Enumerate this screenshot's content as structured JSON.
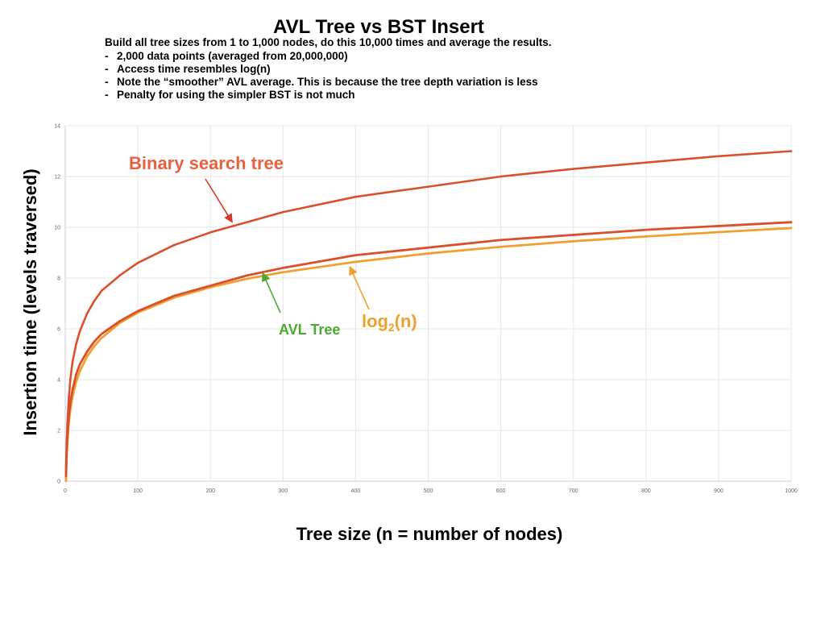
{
  "slide": {
    "title": "AVL Tree vs BST Insert",
    "intro": "Build all tree sizes from 1 to 1,000 nodes, do this 10,000 times and average the results.",
    "bullet_marker": "-",
    "bullets": [
      "2,000 data points (averaged from 20,000,000)",
      "Access time resembles log(n)",
      "Note the “smoother” AVL average. This is because the tree  depth variation is less",
      "Penalty for using the simpler BST is not much"
    ]
  },
  "chart_data": {
    "type": "line",
    "xlabel": "Tree size (n = number of nodes)",
    "ylabel": "Insertion time (levels traversed)",
    "xlim": [
      0,
      1000
    ],
    "ylim": [
      0,
      14
    ],
    "xticks": [
      0,
      100,
      200,
      300,
      400,
      500,
      600,
      700,
      800,
      900,
      1000
    ],
    "yticks": [
      0,
      2,
      4,
      6,
      8,
      10,
      12,
      14
    ],
    "grid": true,
    "series": [
      {
        "name": "Binary search tree",
        "color": "#d9512c",
        "x": [
          1,
          2,
          3,
          5,
          7,
          10,
          15,
          20,
          30,
          40,
          50,
          75,
          100,
          150,
          200,
          250,
          300,
          400,
          500,
          600,
          700,
          800,
          900,
          1000
        ],
        "y": [
          0.3,
          1.5,
          2.3,
          3.3,
          4.0,
          4.7,
          5.4,
          5.9,
          6.6,
          7.1,
          7.5,
          8.1,
          8.6,
          9.3,
          9.8,
          10.2,
          10.6,
          11.2,
          11.6,
          12.0,
          12.3,
          12.55,
          12.8,
          13.0
        ]
      },
      {
        "name": "AVL Tree",
        "color": "#d9512c",
        "x": [
          1,
          2,
          3,
          5,
          7,
          10,
          15,
          20,
          30,
          40,
          50,
          75,
          100,
          150,
          200,
          250,
          300,
          400,
          500,
          600,
          700,
          800,
          900,
          1000
        ],
        "y": [
          0.2,
          1.2,
          1.8,
          2.6,
          3.1,
          3.6,
          4.2,
          4.6,
          5.1,
          5.5,
          5.8,
          6.3,
          6.7,
          7.3,
          7.7,
          8.1,
          8.4,
          8.9,
          9.2,
          9.5,
          9.7,
          9.9,
          10.05,
          10.2
        ]
      },
      {
        "name": "log₂(n)",
        "color": "#f0a030",
        "x": [
          1,
          2,
          3,
          5,
          7,
          10,
          15,
          20,
          30,
          40,
          50,
          75,
          100,
          150,
          200,
          250,
          300,
          400,
          500,
          600,
          700,
          800,
          900,
          1000
        ],
        "y": [
          0,
          1.0,
          1.58,
          2.32,
          2.81,
          3.32,
          3.91,
          4.32,
          4.91,
          5.32,
          5.64,
          6.23,
          6.64,
          7.23,
          7.64,
          7.97,
          8.23,
          8.64,
          8.97,
          9.23,
          9.45,
          9.64,
          9.81,
          9.97
        ]
      }
    ],
    "annotations": [
      {
        "text": "Binary search tree",
        "color": "#e8613f",
        "arrow_color": "#d33a2a",
        "arrow_to": [
          230,
          10.2
        ]
      },
      {
        "text": "AVL Tree",
        "color": "#4fa832",
        "arrow_color": "#4fa832",
        "arrow_to": [
          272,
          8.2
        ]
      },
      {
        "text": "log",
        "subscript": "2",
        "suffix": "(n)",
        "color": "#f0a030",
        "arrow_color": "#f0a030",
        "arrow_to": [
          392,
          8.45
        ]
      }
    ],
    "colors": {
      "grid": "#e6e6e6",
      "axis": "#cccccc",
      "tick_text": "#666666"
    }
  }
}
